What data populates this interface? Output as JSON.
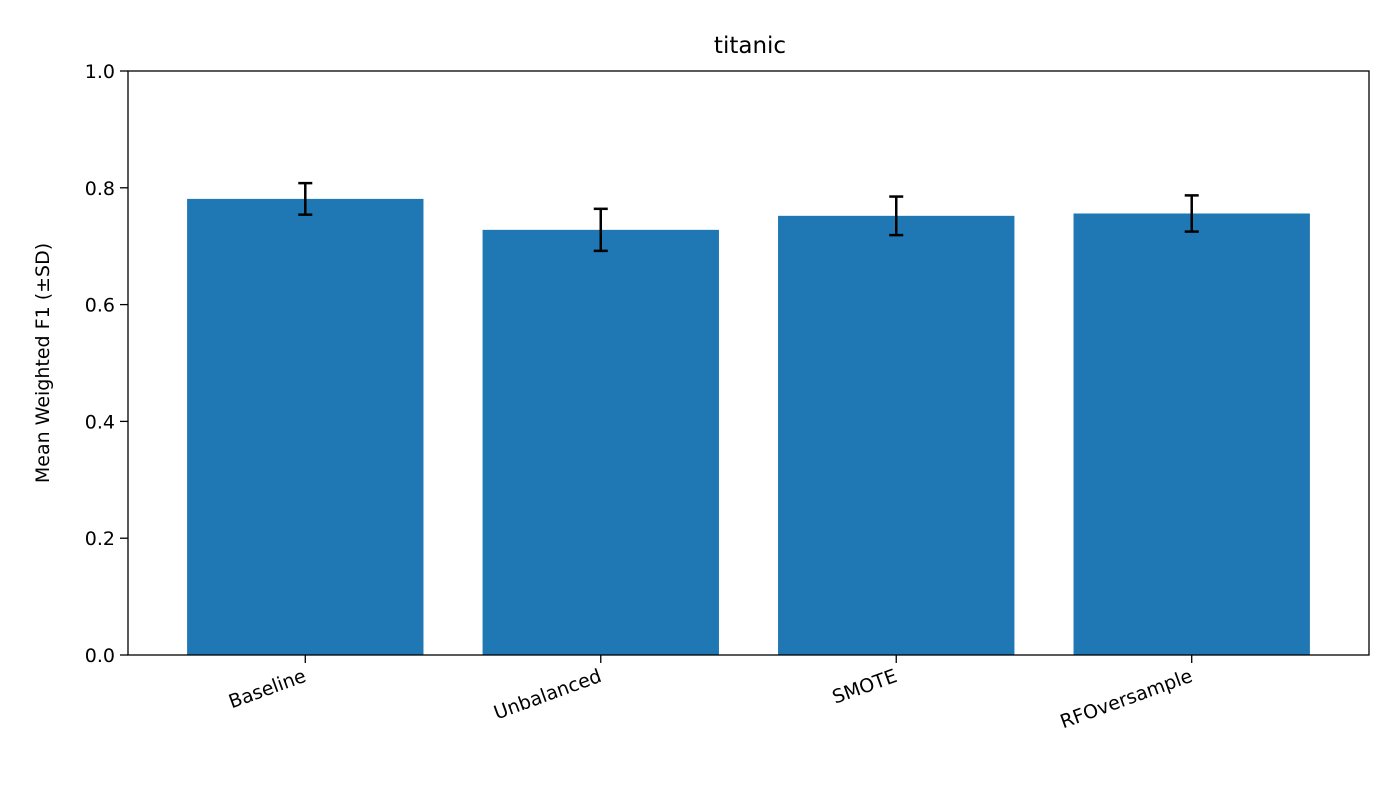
{
  "chart_data": {
    "type": "bar",
    "title": "titanic",
    "xlabel": "",
    "ylabel": "Mean Weighted F1 (±SD)",
    "categories": [
      "Baseline",
      "Unbalanced",
      "SMOTE",
      "RFOversample"
    ],
    "values": [
      0.781,
      0.728,
      0.752,
      0.756
    ],
    "errors": [
      0.027,
      0.036,
      0.033,
      0.031
    ],
    "ylim": [
      0,
      1.0
    ],
    "yticks": [
      "0.0",
      "0.2",
      "0.4",
      "0.6",
      "0.8",
      "1.0"
    ],
    "grid": false,
    "legend": "none",
    "bar_color": "#1f77b4",
    "error_color": "#000000"
  }
}
